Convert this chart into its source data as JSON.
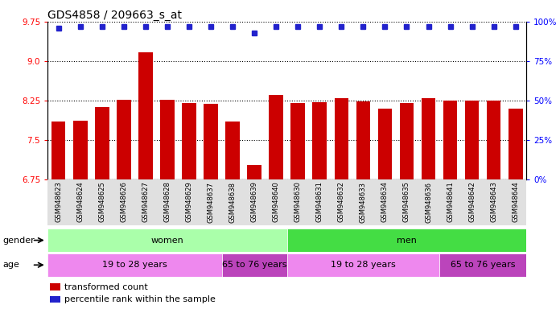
{
  "title": "GDS4858 / 209663_s_at",
  "categories": [
    "GSM948623",
    "GSM948624",
    "GSM948625",
    "GSM948626",
    "GSM948627",
    "GSM948628",
    "GSM948629",
    "GSM948637",
    "GSM948638",
    "GSM948639",
    "GSM948640",
    "GSM948630",
    "GSM948631",
    "GSM948632",
    "GSM948633",
    "GSM948634",
    "GSM948635",
    "GSM948636",
    "GSM948641",
    "GSM948642",
    "GSM948643",
    "GSM948644"
  ],
  "bar_values": [
    7.85,
    7.87,
    8.13,
    8.26,
    9.17,
    8.26,
    8.2,
    8.19,
    7.85,
    7.02,
    8.35,
    8.2,
    8.22,
    8.3,
    8.23,
    8.1,
    8.2,
    8.3,
    8.25,
    8.25,
    8.25,
    8.1
  ],
  "percentile_values": [
    96,
    97,
    97,
    97,
    97,
    97,
    97,
    97,
    97,
    93,
    97,
    97,
    97,
    97,
    97,
    97,
    97,
    97,
    97,
    97,
    97,
    97
  ],
  "ylim_left": [
    6.75,
    9.75
  ],
  "ylim_right": [
    0,
    100
  ],
  "yticks_left": [
    6.75,
    7.5,
    8.25,
    9.0,
    9.75
  ],
  "yticks_right": [
    0,
    25,
    50,
    75,
    100
  ],
  "bar_color": "#cc0000",
  "dot_color": "#2222cc",
  "bg_color": "#ffffff",
  "gender_groups": [
    {
      "label": "women",
      "start": 0,
      "end": 10,
      "color": "#aaffaa"
    },
    {
      "label": "men",
      "start": 11,
      "end": 21,
      "color": "#44dd44"
    }
  ],
  "age_groups": [
    {
      "label": "19 to 28 years",
      "start": 0,
      "end": 7,
      "color": "#ee88ee"
    },
    {
      "label": "65 to 76 years",
      "start": 8,
      "end": 10,
      "color": "#bb44bb"
    },
    {
      "label": "19 to 28 years",
      "start": 11,
      "end": 17,
      "color": "#ee88ee"
    },
    {
      "label": "65 to 76 years",
      "start": 18,
      "end": 21,
      "color": "#bb44bb"
    }
  ],
  "legend_items": [
    {
      "label": "transformed count",
      "color": "#cc0000"
    },
    {
      "label": "percentile rank within the sample",
      "color": "#2222cc"
    }
  ],
  "title_fontsize": 10,
  "tick_fontsize": 7.5,
  "label_fontsize": 8
}
